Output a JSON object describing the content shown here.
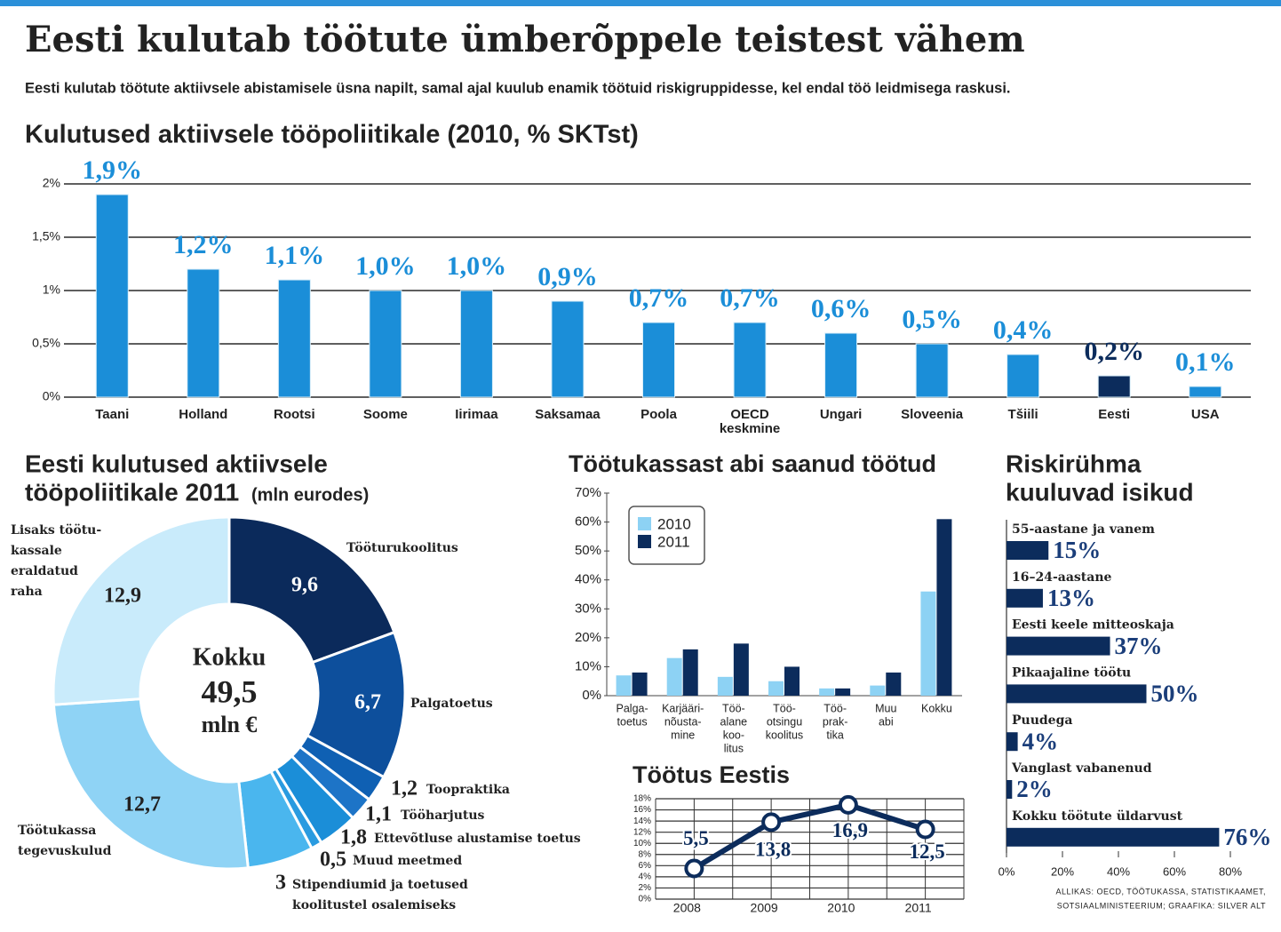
{
  "title": "Eesti kulutab töötute ümberõppele teistest vähem",
  "subtitle": "Eesti kulutab töötute aktiivsele abistamisele üsna napilt, samal ajal kuulub enamik töötuid riskigruppidesse, kel endal töö leidmisega raskusi.",
  "source": [
    "ALLIKAS: OECD, TÖÖTUKASSA, STATISTIKAAMET,",
    "SOTSIAALMINISTEERIUM; GRAAFIKA: SILVER ALT"
  ],
  "chart_data": [
    {
      "type": "bar",
      "title": "Kulutused aktiivsele tööpoliitikale (2010, % SKTst)",
      "categories": [
        "Taani",
        "Holland",
        "Rootsi",
        "Soome",
        "Iirimaa",
        "Saksamaa",
        "Poola",
        [
          "OECD",
          "keskmine"
        ],
        "Ungari",
        "Sloveenia",
        "Tšiili",
        "Eesti",
        "USA"
      ],
      "values": [
        1.9,
        1.2,
        1.1,
        1.0,
        1.0,
        0.9,
        0.7,
        0.7,
        0.6,
        0.5,
        0.4,
        0.2,
        0.1
      ],
      "value_labels": [
        "1,9%",
        "1,2%",
        "1,1%",
        "1,0%",
        "1,0%",
        "0,9%",
        "0,7%",
        "0,7%",
        "0,6%",
        "0,5%",
        "0,4%",
        "0,2%",
        "0,1%"
      ],
      "colors": [
        "#1b8ed8",
        "#1b8ed8",
        "#1b8ed8",
        "#1b8ed8",
        "#1b8ed8",
        "#1b8ed8",
        "#1b8ed8",
        "#1b8ed8",
        "#1b8ed8",
        "#1b8ed8",
        "#1b8ed8",
        "#0c2c5c",
        "#1b8ed8"
      ],
      "ylim": [
        0,
        2
      ],
      "yticks": [
        {
          "value": 0,
          "label": "0%"
        },
        {
          "value": 0.5,
          "label": "0,5%"
        },
        {
          "value": 1,
          "label": "1%"
        },
        {
          "value": 1.5,
          "label": "1,5%"
        },
        {
          "value": 2,
          "label": "2%"
        }
      ],
      "grid": true
    },
    {
      "type": "donut",
      "title": [
        "Eesti kulutused aktiivsele",
        "tööpoliitikale 2011"
      ],
      "subtitle": "(mln eurodes)",
      "center_label": "Kokku",
      "total": 49.5,
      "total_label": "49,5",
      "unit": "mln €",
      "categories": [
        [
          "Tööturukoolitus"
        ],
        [
          "Palgatoetus"
        ],
        [
          "Toopraktika"
        ],
        [
          "Tööharjutus"
        ],
        [
          "Ettevõtluse alustamise toetus"
        ],
        [
          "Muud meetmed"
        ],
        [
          "Stipendiumid ja toetused",
          "koolitustel osalemiseks"
        ],
        [
          "Töötukassa",
          "tegevuskulud"
        ],
        [
          "Lisaks töötu-",
          "kassale",
          "eraldatud",
          "raha"
        ]
      ],
      "values": [
        9.6,
        6.7,
        1.2,
        1.1,
        1.8,
        0.5,
        3,
        12.7,
        12.9
      ],
      "value_labels": [
        "9,6",
        "6,7",
        "1,2",
        "1,1",
        "1,8",
        "0,5",
        "3",
        "12,7",
        "12,9"
      ],
      "colors": [
        "#0b2a5b",
        "#0d4f9c",
        "#0f60b3",
        "#1d74c7",
        "#1b8ed8",
        "#2a9be0",
        "#4ab6ee",
        "#8fd3f5",
        "#c9ebfb"
      ]
    },
    {
      "type": "grouped_bar",
      "title": "Töötukassast abi saanud töötud",
      "categories": [
        [
          "Palga-",
          "toetus"
        ],
        [
          "Karjääri-",
          "nõusta-",
          "mine"
        ],
        [
          "Töö-",
          "alane",
          "koo-",
          "litus"
        ],
        [
          "Töö-",
          "otsingu",
          "koolitus"
        ],
        [
          "Töö-",
          "prak-",
          "tika"
        ],
        [
          "Muu",
          "abi"
        ],
        [
          "Kokku"
        ]
      ],
      "series": [
        {
          "name": "2010",
          "color": "#8dd2f4",
          "values": [
            7,
            13,
            6.5,
            5,
            2.5,
            3.5,
            36
          ]
        },
        {
          "name": "2011",
          "color": "#0c2c5c",
          "values": [
            8,
            16,
            18,
            10,
            2.5,
            8,
            61
          ]
        }
      ],
      "ylim": [
        0,
        70
      ],
      "yticks": [
        {
          "value": 0,
          "label": "0%"
        },
        {
          "value": 10,
          "label": "10%"
        },
        {
          "value": 20,
          "label": "20%"
        },
        {
          "value": 30,
          "label": "30%"
        },
        {
          "value": 40,
          "label": "40%"
        },
        {
          "value": 50,
          "label": "50%"
        },
        {
          "value": 60,
          "label": "60%"
        },
        {
          "value": 70,
          "label": "70%"
        }
      ],
      "legend": "upper left"
    },
    {
      "type": "line",
      "title": "Töötus Eestis",
      "categories": [
        "2008",
        "2009",
        "2010",
        "2011"
      ],
      "values": [
        5.5,
        13.8,
        16.9,
        12.5
      ],
      "value_labels": [
        "5,5",
        "13,8",
        "16,9",
        "12,5"
      ],
      "color": "#0c2c5c",
      "ylim": [
        0,
        18
      ],
      "yticks": [
        {
          "value": 0,
          "label": "0%"
        },
        {
          "value": 2,
          "label": "2%"
        },
        {
          "value": 4,
          "label": "4%"
        },
        {
          "value": 6,
          "label": "6%"
        },
        {
          "value": 8,
          "label": "8%"
        },
        {
          "value": 10,
          "label": "10%"
        },
        {
          "value": 12,
          "label": "12%"
        },
        {
          "value": 14,
          "label": "14%"
        },
        {
          "value": 16,
          "label": "16%"
        },
        {
          "value": 18,
          "label": "18%"
        }
      ],
      "grid": true
    },
    {
      "type": "hbar",
      "title": [
        "Riskirühma",
        "kuuluvad isikud"
      ],
      "categories": [
        "55-aastane ja vanem",
        "16–24-aastane",
        "Eesti keele mitteoskaja",
        "Pikaajaline töötu",
        "Puudega",
        "Vanglast vabanenud",
        "Kokku töötute üldarvust"
      ],
      "values": [
        15,
        13,
        37,
        50,
        4,
        2,
        76
      ],
      "value_labels": [
        "15%",
        "13%",
        "37%",
        "50%",
        "4%",
        "2%",
        "76%"
      ],
      "color": "#0c2c5c",
      "xlim": [
        0,
        80
      ],
      "xticks": [
        {
          "value": 0,
          "label": "0%"
        },
        {
          "value": 20,
          "label": "20%"
        },
        {
          "value": 40,
          "label": "40%"
        },
        {
          "value": 60,
          "label": "60%"
        },
        {
          "value": 80,
          "label": "80%"
        }
      ]
    }
  ]
}
